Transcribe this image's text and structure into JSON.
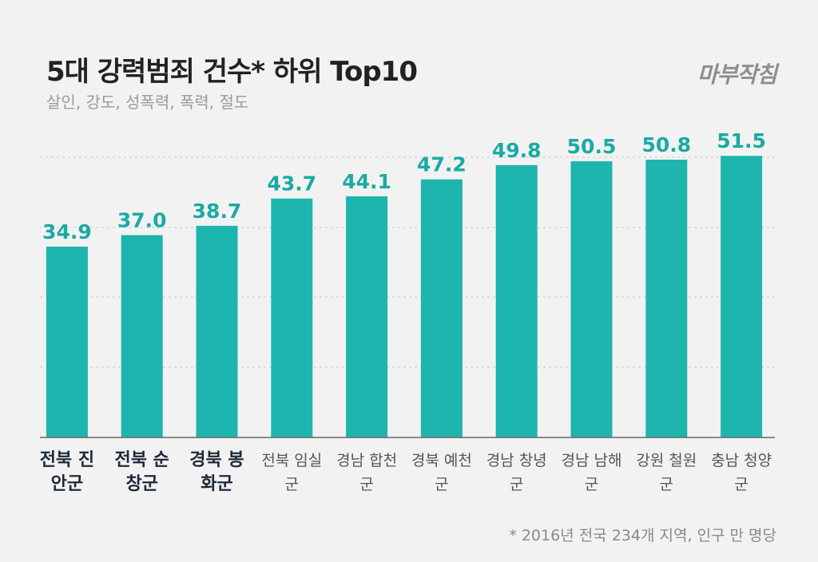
{
  "chart_data": {
    "type": "bar",
    "title": "5대 강력범죄 건수* 하위 Top10",
    "subtitle": "살인, 강도, 성폭력, 폭력, 절도",
    "brand": "마부작침",
    "footnote": "* 2016년 전국 234개 지역, 인구 만 명당",
    "categories": [
      "전북 진안군",
      "전북 순창군",
      "경북 봉화군",
      "전북 임실군",
      "경남 합천군",
      "경북 예천군",
      "경남 창녕군",
      "경남 남해군",
      "강원 철원군",
      "충남 청양군"
    ],
    "values": [
      34.9,
      37.0,
      38.7,
      43.7,
      44.1,
      47.2,
      49.8,
      50.5,
      50.8,
      51.5
    ],
    "value_labels": [
      "34.9",
      "37.0",
      "38.7",
      "43.7",
      "44.1",
      "47.2",
      "49.8",
      "50.5",
      "50.8",
      "51.5"
    ],
    "color": "#1db5ae",
    "ylim": [
      0,
      80
    ]
  }
}
